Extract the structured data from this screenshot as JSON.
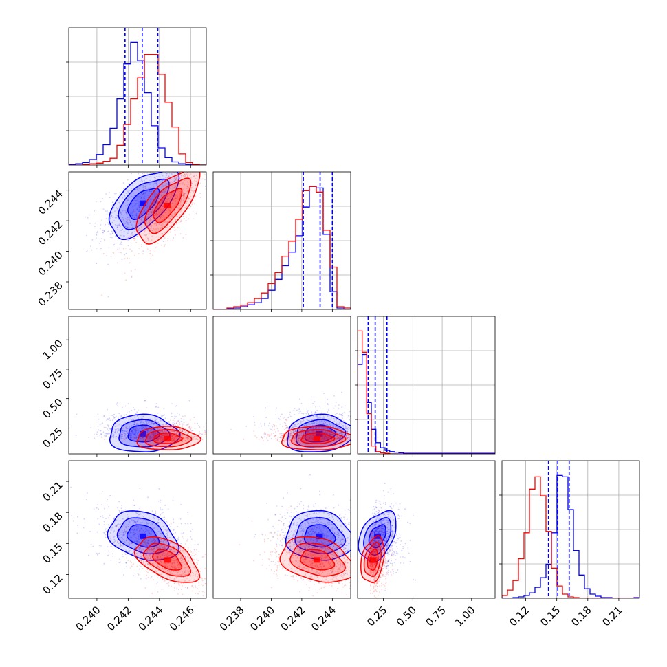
{
  "chart_data": {
    "type": "corner",
    "n_params": 4,
    "colors": {
      "sample_a": "#0000ff",
      "sample_b": "#ff0000"
    },
    "grid": true,
    "quantile_lines": "dashed, blue",
    "params": [
      {
        "range": [
          0.2382,
          0.247
        ],
        "ticks": [
          0.24,
          0.242,
          0.244,
          0.246
        ],
        "tick_labels": [
          "0.240",
          "0.242",
          "0.244",
          "0.246"
        ]
      },
      {
        "range": [
          0.2362,
          0.2452
        ],
        "ticks": [
          0.238,
          0.24,
          0.242,
          0.244
        ],
        "tick_labels": [
          "0.238",
          "0.240",
          "0.242",
          "0.244"
        ]
      },
      {
        "range": [
          0.03,
          1.2
        ],
        "ticks": [
          0.25,
          0.5,
          0.75,
          1.0
        ],
        "tick_labels": [
          "0.25",
          "0.50",
          "0.75",
          "1.00"
        ]
      },
      {
        "range": [
          0.097,
          0.23
        ],
        "ticks": [
          0.12,
          0.15,
          0.18,
          0.21
        ],
        "tick_labels": [
          "0.12",
          "0.15",
          "0.18",
          "0.21"
        ]
      }
    ],
    "quantiles": [
      [
        0.2418,
        0.2429,
        0.2439
      ],
      [
        0.2421,
        0.2432,
        0.244
      ],
      [
        0.12,
        0.18,
        0.28
      ],
      [
        0.142,
        0.151,
        0.162
      ]
    ],
    "histograms": [
      {
        "edges_range": [
          0.2382,
          0.247
        ],
        "bins": 20,
        "series": [
          {
            "name": "",
            "color": "blue",
            "values": [
              1,
              2,
              4,
              9,
              17,
              33,
              60,
              108,
              165,
              200,
              170,
              118,
              64,
              28,
              12,
              5,
              2,
              1,
              0,
              0
            ]
          },
          {
            "name": "",
            "color": "red",
            "values": [
              0,
              0,
              1,
              2,
              3,
              6,
              11,
              32,
              66,
              108,
              142,
              180,
              180,
              148,
              102,
              62,
              18,
              4,
              1,
              0
            ]
          }
        ]
      },
      {
        "edges_range": [
          0.2362,
          0.2452
        ],
        "bins": 20,
        "series": [
          {
            "name": "",
            "color": "blue",
            "values": [
              0,
              0,
              1,
              2,
              4,
              7,
              10,
              16,
              28,
              44,
              64,
              84,
              108,
              150,
              180,
              178,
              110,
              26,
              2,
              0
            ]
          },
          {
            "name": "",
            "color": "red",
            "values": [
              0,
              0,
              2,
              4,
              6,
              10,
              16,
              24,
              38,
              54,
              78,
              100,
              132,
              174,
              180,
              172,
              116,
              62,
              4,
              2
            ]
          }
        ]
      },
      {
        "edges_range": [
          0.03,
          1.2
        ],
        "bins": 30,
        "series": [
          {
            "name": "",
            "color": "blue",
            "values": [
              160,
              178,
              92,
              44,
              20,
              11,
              6,
              4,
              3,
              2,
              1,
              1,
              1,
              1,
              1,
              1,
              1,
              1,
              1,
              1,
              1,
              1,
              1,
              1,
              1,
              1,
              1,
              1,
              1,
              1
            ]
          },
          {
            "name": "",
            "color": "red",
            "values": [
              220,
              182,
              72,
              14,
              4,
              2,
              1,
              0,
              0,
              0,
              0,
              0,
              0,
              0,
              0,
              0,
              0,
              0,
              0,
              0,
              0,
              0,
              0,
              0,
              0,
              0,
              0,
              0,
              0,
              0
            ]
          }
        ]
      },
      {
        "edges_range": [
          0.097,
          0.23
        ],
        "bins": 25,
        "series": [
          {
            "name": "",
            "color": "blue",
            "values": [
              0,
              0,
              1,
              2,
              4,
              8,
              16,
              30,
              50,
              96,
              180,
              178,
              130,
              70,
              34,
              14,
              6,
              3,
              1,
              1,
              0,
              0,
              0,
              0,
              1
            ]
          },
          {
            "name": "",
            "color": "red",
            "values": [
              4,
              12,
              26,
              58,
              96,
              160,
              178,
              150,
              98,
              44,
              18,
              6,
              2,
              1,
              0,
              0,
              0,
              0,
              0,
              0,
              0,
              0,
              0,
              0,
              0
            ]
          }
        ]
      }
    ],
    "samples_2d": {
      "blue": {
        "mean": [
          0.24295,
          0.24315,
          0.2,
          0.157
        ],
        "sd": [
          0.0011,
          0.0011,
          0.08,
          0.012
        ]
      },
      "red": {
        "mean": [
          0.2445,
          0.243,
          0.16,
          0.134
        ],
        "sd": [
          0.001,
          0.0012,
          0.05,
          0.011
        ]
      }
    },
    "correlations": {
      "blue": {
        "1,0": 0.6,
        "2,0": 0.0,
        "2,1": 0.1,
        "3,0": -0.3,
        "3,1": -0.1,
        "3,2": 0.4
      },
      "red": {
        "1,0": 0.7,
        "2,0": 0.0,
        "2,1": 0.0,
        "3,0": -0.5,
        "3,1": -0.3,
        "3,2": 0.3
      }
    }
  }
}
